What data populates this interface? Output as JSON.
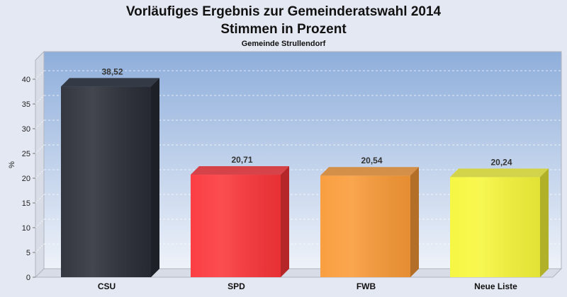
{
  "chart_data": {
    "type": "bar",
    "title": "Vorläufiges Ergebnis zur Gemeinderatswahl 2014",
    "subtitle": "Stimmen in Prozent",
    "caption": "Gemeinde Strullendorf",
    "ylabel": "%",
    "xlabel": "",
    "ylim": [
      0,
      45
    ],
    "yticks": [
      "0",
      "5",
      "10",
      "15",
      "20",
      "25",
      "30",
      "35",
      "40"
    ],
    "categories": [
      "CSU",
      "SPD",
      "FWB",
      "Neue Liste"
    ],
    "values": [
      38.52,
      20.71,
      20.54,
      20.24
    ],
    "value_labels": [
      "38,52",
      "20,71",
      "20,54",
      "20,24"
    ],
    "colors": [
      "#2a2d36",
      "#fb3539",
      "#f99a37",
      "#f6f63a"
    ],
    "grid": true,
    "legend": "none"
  }
}
